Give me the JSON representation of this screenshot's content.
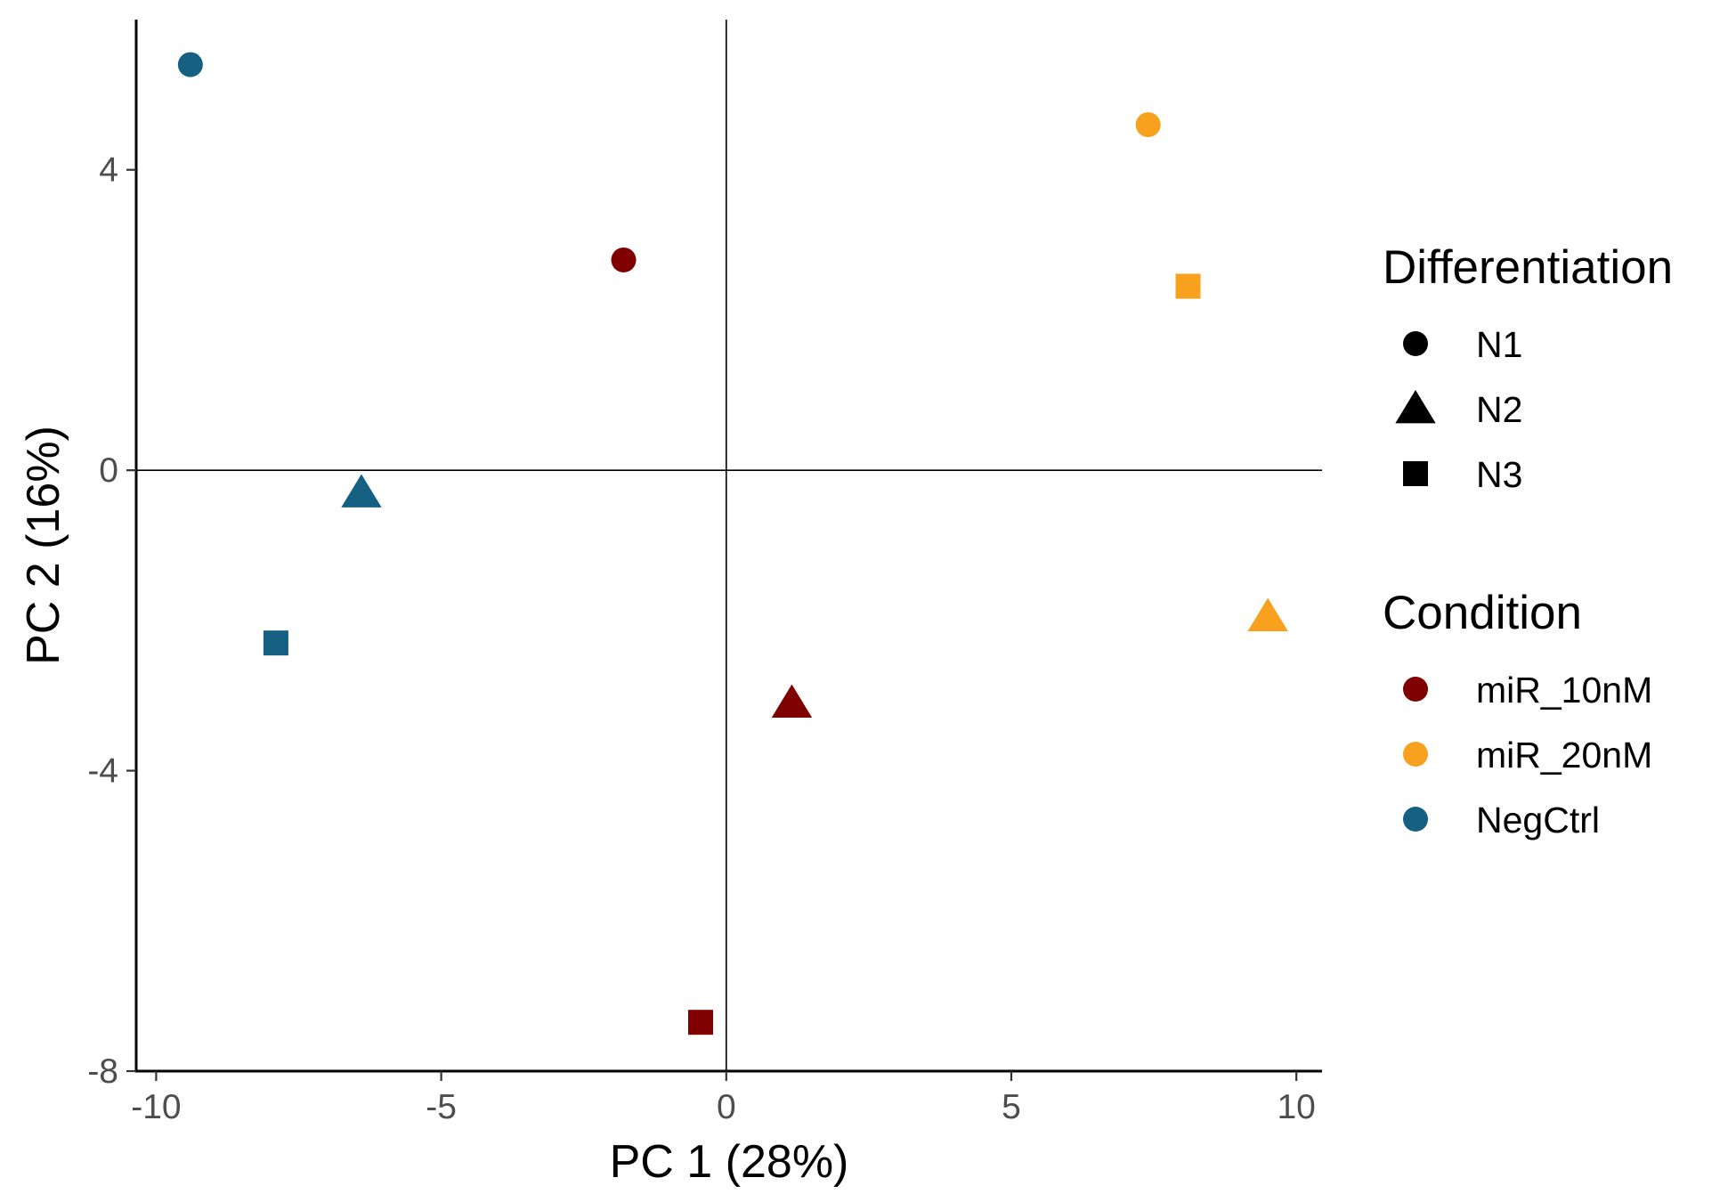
{
  "chart_data": {
    "type": "scatter",
    "xlabel": "PC 1 (28%)",
    "ylabel": "PC 2 (16%)",
    "xlim": [
      -10.35,
      10.45
    ],
    "ylim": [
      -8.0,
      6.0
    ],
    "x_ticks": [
      -10,
      -5,
      0,
      5,
      10
    ],
    "y_ticks": [
      -8,
      -4,
      0,
      4
    ],
    "x_tick_labels": [
      "-10",
      "-5",
      "0",
      "5",
      "10"
    ],
    "y_tick_labels": [
      "-8",
      "-4",
      "0",
      "4"
    ],
    "grid": false,
    "reference_lines": {
      "x": 0,
      "y": 0
    },
    "legend_position": "right",
    "legends": [
      {
        "title": "Differentiation",
        "entries": [
          {
            "label": "N1",
            "shape": "circle"
          },
          {
            "label": "N2",
            "shape": "triangle"
          },
          {
            "label": "N3",
            "shape": "square"
          }
        ]
      },
      {
        "title": "Condition",
        "entries": [
          {
            "label": "miR_10nM",
            "color": "#7f0000"
          },
          {
            "label": "miR_20nM",
            "color": "#f8a11e"
          },
          {
            "label": "NegCtrl",
            "color": "#155f82"
          }
        ]
      }
    ],
    "points": [
      {
        "x": -9.4,
        "y": 5.4,
        "differentiation": "N1",
        "condition": "NegCtrl"
      },
      {
        "x": -6.4,
        "y": -0.3,
        "differentiation": "N2",
        "condition": "NegCtrl"
      },
      {
        "x": -7.9,
        "y": -2.3,
        "differentiation": "N3",
        "condition": "NegCtrl"
      },
      {
        "x": -1.8,
        "y": 2.8,
        "differentiation": "N1",
        "condition": "miR_10nM"
      },
      {
        "x": 1.15,
        "y": -3.1,
        "differentiation": "N2",
        "condition": "miR_10nM"
      },
      {
        "x": -0.45,
        "y": -7.35,
        "differentiation": "N3",
        "condition": "miR_10nM"
      },
      {
        "x": 7.4,
        "y": 4.6,
        "differentiation": "N1",
        "condition": "miR_20nM"
      },
      {
        "x": 9.5,
        "y": -1.95,
        "differentiation": "N2",
        "condition": "miR_20nM"
      },
      {
        "x": 8.1,
        "y": 2.45,
        "differentiation": "N3",
        "condition": "miR_20nM"
      }
    ]
  }
}
